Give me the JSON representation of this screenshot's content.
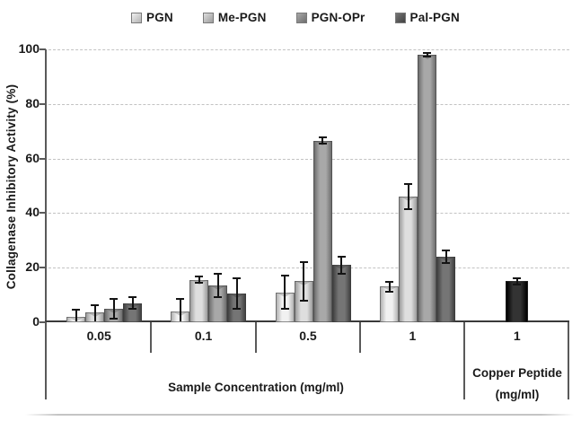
{
  "chart_data": {
    "type": "bar",
    "title": "",
    "ylabel": "Collagenase Inhibitory Activity (%)",
    "xlabel": "Sample Concentration (mg/ml)",
    "ylim": [
      0,
      100
    ],
    "yticks": [
      0,
      20,
      40,
      60,
      80,
      100
    ],
    "grid": "horizontal dashed gridlines at 20, 40, 60, 80, 100",
    "legend_position": "top-center",
    "legend_items": [
      "PGN",
      "Me-PGN",
      "PGN-OPr",
      "Pal-PGN"
    ],
    "categories": [
      "0.05",
      "0.1",
      "0.5",
      "1"
    ],
    "series": [
      {
        "name": "PGN",
        "values": [
          2,
          4,
          11,
          13
        ],
        "errors": [
          3,
          5,
          6.5,
          2
        ],
        "color_edge": "#b2b2b2",
        "color_center": "#f1f1f1"
      },
      {
        "name": "Me-PGN",
        "values": [
          3.5,
          15.5,
          15,
          46
        ],
        "errors": [
          3,
          1.5,
          7.5,
          5
        ],
        "color_edge": "#9c9c9c",
        "color_center": "#dedede"
      },
      {
        "name": "PGN-OPr",
        "values": [
          5,
          13.5,
          66.5,
          98
        ],
        "errors": [
          4,
          4.5,
          1.5,
          1
        ],
        "color_edge": "#6e6e6e",
        "color_center": "#a8a8a8"
      },
      {
        "name": "Pal-PGN",
        "values": [
          7,
          10.5,
          21,
          24
        ],
        "errors": [
          2.5,
          6,
          3.5,
          2.5
        ],
        "color_edge": "#424242",
        "color_center": "#757575"
      }
    ],
    "extra_bar": {
      "tick_label": "1",
      "axis_label_line1": "Copper Peptide",
      "axis_label_line2": "(mg/ml)",
      "name": "Copper Peptide",
      "value": 15,
      "error": 1.5,
      "color_edge": "#000000",
      "color_center": "#333333"
    }
  }
}
